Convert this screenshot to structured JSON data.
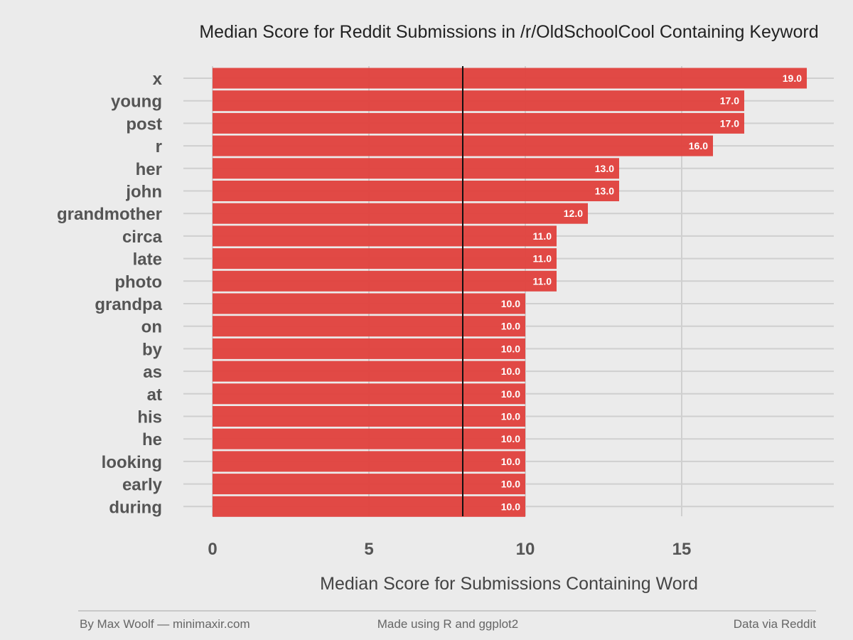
{
  "chart_data": {
    "type": "bar",
    "orientation": "horizontal",
    "title": "Median Score for Reddit Submissions in /r/OldSchoolCool Containing Keyword",
    "xlabel": "Median Score for Submissions Containing Word",
    "ylabel": "",
    "categories": [
      "x",
      "young",
      "post",
      "r",
      "her",
      "john",
      "grandmother",
      "circa",
      "late",
      "photo",
      "grandpa",
      "on",
      "by",
      "as",
      "at",
      "his",
      "he",
      "looking",
      "early",
      "during"
    ],
    "values": [
      19.0,
      17.0,
      17.0,
      16.0,
      13.0,
      13.0,
      12.0,
      11.0,
      11.0,
      11.0,
      10.0,
      10.0,
      10.0,
      10.0,
      10.0,
      10.0,
      10.0,
      10.0,
      10.0,
      10.0
    ],
    "value_labels": [
      "19.0",
      "17.0",
      "17.0",
      "16.0",
      "13.0",
      "13.0",
      "12.0",
      "11.0",
      "11.0",
      "11.0",
      "10.0",
      "10.0",
      "10.0",
      "10.0",
      "10.0",
      "10.0",
      "10.0",
      "10.0",
      "10.0",
      "10.0"
    ],
    "xlim": [
      0,
      19.8
    ],
    "xticks": [
      0,
      5,
      10,
      15
    ],
    "xtick_labels": [
      "0",
      "5",
      "10",
      "15"
    ],
    "reference_line": 8,
    "grid": true,
    "bar_color": "#e0403c",
    "footer": {
      "left": "By Max Woolf — minimaxir.com",
      "center": "Made using R and ggplot2",
      "right": "Data via Reddit"
    }
  }
}
